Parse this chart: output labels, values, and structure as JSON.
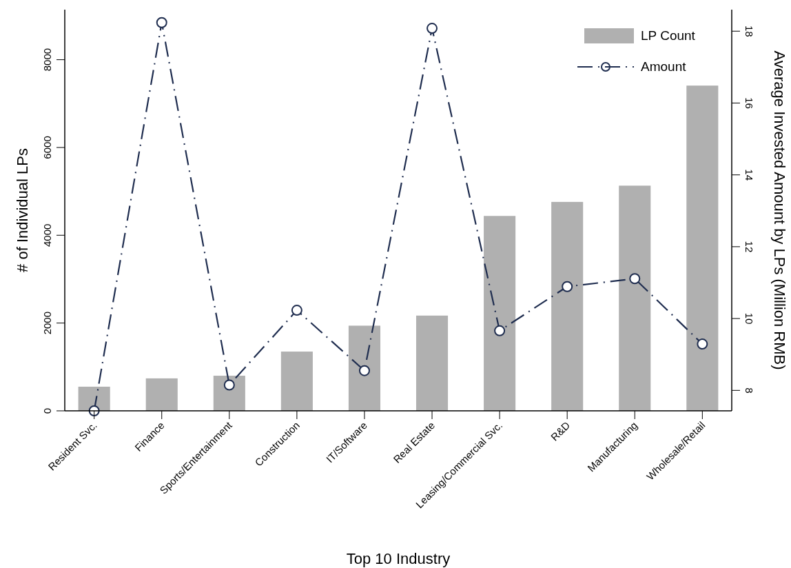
{
  "chart_data": {
    "type": "bar",
    "xlabel": "Top 10 Industry",
    "ylabel": "# of Individual LPs",
    "y2label": "Average Invested Amount by LPs (Million RMB)",
    "categories": [
      "Resident Svc.",
      "Finance",
      "Sports/Entertainment",
      "Construction",
      "IT/Software",
      "Real Estate",
      "Leasing/Commercial Svc.",
      "R&D",
      "Manufacturing",
      "Wholesale/Retail"
    ],
    "series": [
      {
        "name": "LP Count",
        "color": "#b0b0b0",
        "values": [
          550,
          740,
          800,
          1350,
          1940,
          2170,
          4440,
          4760,
          5130,
          7410
        ]
      },
      {
        "name": "Amount",
        "type": "line",
        "axis": "y2",
        "color": "#1f2d4f",
        "marker": "circle",
        "line_style": "dashdot",
        "values": [
          7.43,
          18.24,
          8.15,
          10.23,
          8.55,
          18.08,
          9.66,
          10.89,
          11.11,
          9.29
        ]
      }
    ],
    "ylim": [
      0,
      9140
    ],
    "yticks": [
      0,
      2000,
      4000,
      6000,
      8000
    ],
    "y2lim": [
      7.43,
      18.6
    ],
    "y2ticks": [
      8,
      10,
      12,
      14,
      16,
      18
    ],
    "grid": false,
    "legend": "top right"
  }
}
